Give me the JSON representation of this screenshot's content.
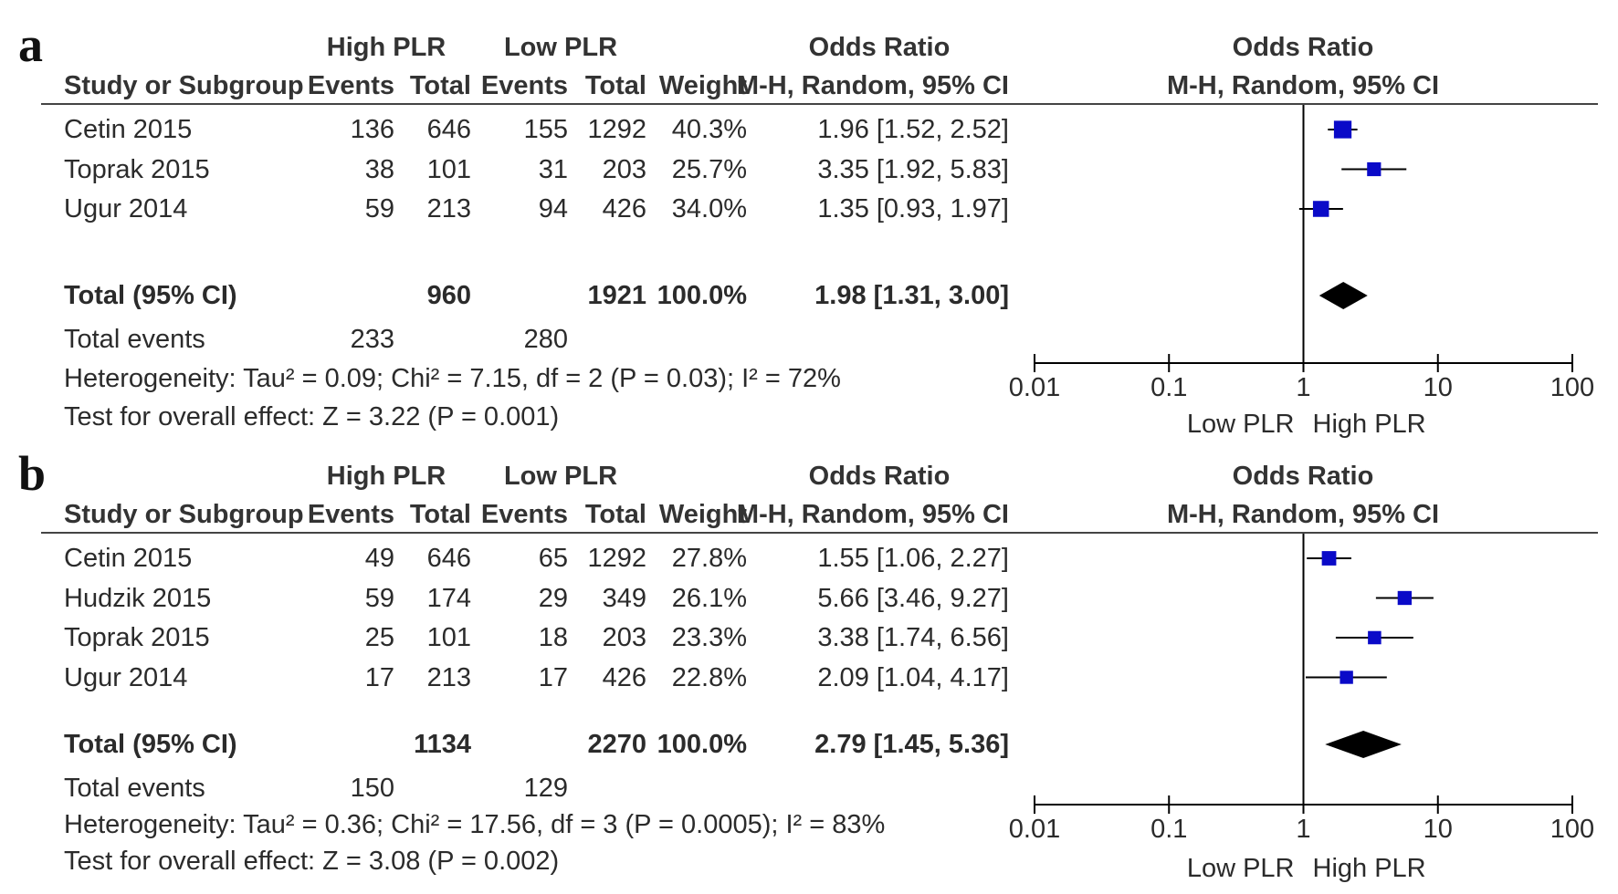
{
  "chart_data": [
    {
      "type": "forest",
      "panel_label": "a",
      "columns": {
        "group1": "High PLR",
        "group2": "Low PLR",
        "effect_title": "Odds Ratio",
        "study": "Study or Subgroup",
        "events": "Events",
        "total": "Total",
        "weight": "Weight",
        "method": "M-H, Random, 95% CI"
      },
      "studies": [
        {
          "name": "Cetin 2015",
          "e1": "136",
          "n1": "646",
          "e2": "155",
          "n2": "1292",
          "weight": "40.3%",
          "ci_text": "1.96 [1.52, 2.52]",
          "or": 1.96,
          "lo": 1.52,
          "hi": 2.52
        },
        {
          "name": "Toprak 2015",
          "e1": "38",
          "n1": "101",
          "e2": "31",
          "n2": "203",
          "weight": "25.7%",
          "ci_text": "3.35 [1.92, 5.83]",
          "or": 3.35,
          "lo": 1.92,
          "hi": 5.83
        },
        {
          "name": "Ugur 2014",
          "e1": "59",
          "n1": "213",
          "e2": "94",
          "n2": "426",
          "weight": "34.0%",
          "ci_text": "1.35 [0.93, 1.97]",
          "or": 1.35,
          "lo": 0.93,
          "hi": 1.97
        }
      ],
      "total": {
        "label": "Total (95% CI)",
        "n1": "960",
        "n2": "1921",
        "weight": "100.0%",
        "ci_text": "1.98 [1.31, 3.00]",
        "or": 1.98,
        "lo": 1.31,
        "hi": 3.0
      },
      "total_events": {
        "label": "Total events",
        "e1": "233",
        "e2": "280"
      },
      "heterogeneity": "Heterogeneity: Tau² = 0.09; Chi² = 7.15, df = 2 (P = 0.03); I² = 72%",
      "overall_effect": "Test for overall effect: Z = 3.22 (P = 0.001)",
      "axis": {
        "scale": "log",
        "ticks": [
          0.01,
          0.1,
          1,
          10,
          100
        ],
        "tick_labels": [
          "0.01",
          "0.1",
          "1",
          "10",
          "100"
        ],
        "favours_left": "Low PLR",
        "favours_right": "High PLR"
      }
    },
    {
      "type": "forest",
      "panel_label": "b",
      "columns": {
        "group1": "High PLR",
        "group2": "Low PLR",
        "effect_title": "Odds Ratio",
        "study": "Study or Subgroup",
        "events": "Events",
        "total": "Total",
        "weight": "Weight",
        "method": "M-H, Random, 95% CI"
      },
      "studies": [
        {
          "name": "Cetin 2015",
          "e1": "49",
          "n1": "646",
          "e2": "65",
          "n2": "1292",
          "weight": "27.8%",
          "ci_text": "1.55 [1.06, 2.27]",
          "or": 1.55,
          "lo": 1.06,
          "hi": 2.27
        },
        {
          "name": "Hudzik 2015",
          "e1": "59",
          "n1": "174",
          "e2": "29",
          "n2": "349",
          "weight": "26.1%",
          "ci_text": "5.66 [3.46, 9.27]",
          "or": 5.66,
          "lo": 3.46,
          "hi": 9.27
        },
        {
          "name": "Toprak 2015",
          "e1": "25",
          "n1": "101",
          "e2": "18",
          "n2": "203",
          "weight": "23.3%",
          "ci_text": "3.38 [1.74, 6.56]",
          "or": 3.38,
          "lo": 1.74,
          "hi": 6.56
        },
        {
          "name": "Ugur 2014",
          "e1": "17",
          "n1": "213",
          "e2": "17",
          "n2": "426",
          "weight": "22.8%",
          "ci_text": "2.09 [1.04, 4.17]",
          "or": 2.09,
          "lo": 1.04,
          "hi": 4.17
        }
      ],
      "total": {
        "label": "Total (95% CI)",
        "n1": "1134",
        "n2": "2270",
        "weight": "100.0%",
        "ci_text": "2.79 [1.45, 5.36]",
        "or": 2.79,
        "lo": 1.45,
        "hi": 5.36
      },
      "total_events": {
        "label": "Total events",
        "e1": "150",
        "e2": "129"
      },
      "heterogeneity": "Heterogeneity: Tau² = 0.36; Chi² = 17.56, df = 3 (P = 0.0005); I² = 83%",
      "overall_effect": "Test for overall effect: Z = 3.08 (P = 0.002)",
      "axis": {
        "scale": "log",
        "ticks": [
          0.01,
          0.1,
          1,
          10,
          100
        ],
        "tick_labels": [
          "0.01",
          "0.1",
          "1",
          "10",
          "100"
        ],
        "favours_left": "Low PLR",
        "favours_right": "High PLR"
      }
    }
  ],
  "colors": {
    "marker": "#0a0ac8",
    "diamond": "#000000",
    "line": "#000000",
    "text": "#2b2b2b"
  }
}
